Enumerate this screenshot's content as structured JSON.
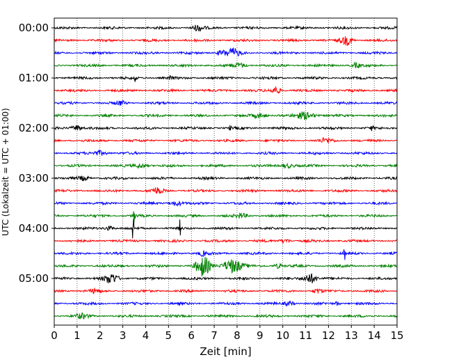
{
  "chart_data": {
    "type": "line",
    "xlabel": "Zeit  [min]",
    "ylabel": "UTC (Lokalzeit = UTC + 01:00)",
    "xlim": [
      0,
      15
    ],
    "x_ticks": [
      "0",
      "1",
      "2",
      "3",
      "4",
      "5",
      "6",
      "7",
      "8",
      "9",
      "10",
      "11",
      "12",
      "13",
      "14",
      "15"
    ],
    "y_ticks": [
      "00:00",
      "01:00",
      "02:00",
      "03:00",
      "04:00",
      "05:00"
    ],
    "grid": "vertical dotted",
    "trace_colors": [
      "#000000",
      "#ff0000",
      "#0000ff",
      "#008000"
    ],
    "traces": [
      {
        "start": "00:00",
        "color": "#000000",
        "events": [
          {
            "t": 6.3,
            "amp": 4,
            "w": 0.25
          }
        ]
      },
      {
        "start": "00:15",
        "color": "#ff0000",
        "events": [
          {
            "t": 12.8,
            "amp": 6,
            "w": 0.25
          }
        ]
      },
      {
        "start": "00:30",
        "color": "#0000ff",
        "events": [
          {
            "t": 7.8,
            "amp": 6,
            "w": 0.3
          },
          {
            "t": 7.3,
            "amp": 3,
            "w": 0.2
          }
        ]
      },
      {
        "start": "00:45",
        "color": "#008000",
        "events": [
          {
            "t": 8.1,
            "amp": 3,
            "w": 0.3
          },
          {
            "t": 13.2,
            "amp": 3,
            "w": 0.2
          }
        ]
      },
      {
        "start": "01:00",
        "color": "#000000",
        "events": [
          {
            "t": 3.55,
            "amp": 5,
            "w": 0.05
          },
          {
            "t": 5.1,
            "amp": 5,
            "w": 0.05
          }
        ]
      },
      {
        "start": "01:15",
        "color": "#ff0000",
        "events": [
          {
            "t": 9.7,
            "amp": 5,
            "w": 0.2
          }
        ]
      },
      {
        "start": "01:30",
        "color": "#0000ff",
        "events": [
          {
            "t": 2.9,
            "amp": 3,
            "w": 0.2
          }
        ]
      },
      {
        "start": "01:45",
        "color": "#008000",
        "events": [
          {
            "t": 9.0,
            "amp": 3,
            "w": 0.3
          },
          {
            "t": 11.0,
            "amp": 5,
            "w": 0.4
          }
        ]
      },
      {
        "start": "02:00",
        "color": "#000000",
        "events": [
          {
            "t": 1.0,
            "amp": 4,
            "w": 0.25
          },
          {
            "t": 7.7,
            "amp": 3,
            "w": 0.05
          },
          {
            "t": 13.9,
            "amp": 4,
            "w": 0.05
          }
        ]
      },
      {
        "start": "02:15",
        "color": "#ff0000",
        "events": [
          {
            "t": 11.9,
            "amp": 3,
            "w": 0.3
          }
        ]
      },
      {
        "start": "02:30",
        "color": "#0000ff",
        "events": [
          {
            "t": 2.0,
            "amp": 3,
            "w": 0.3
          }
        ]
      },
      {
        "start": "02:45",
        "color": "#008000",
        "events": [
          {
            "t": 3.8,
            "amp": 3,
            "w": 0.3
          },
          {
            "t": 10.2,
            "amp": 3,
            "w": 0.3
          }
        ]
      },
      {
        "start": "03:00",
        "color": "#000000",
        "events": [
          {
            "t": 1.3,
            "amp": 3,
            "w": 0.25
          }
        ]
      },
      {
        "start": "03:15",
        "color": "#ff0000",
        "events": [
          {
            "t": 4.5,
            "amp": 4,
            "w": 0.25
          }
        ]
      },
      {
        "start": "03:30",
        "color": "#0000ff",
        "events": [
          {
            "t": 5.3,
            "amp": 3,
            "w": 0.3
          }
        ]
      },
      {
        "start": "03:45",
        "color": "#008000",
        "events": [
          {
            "t": 3.5,
            "amp": 9,
            "w": 0.05
          },
          {
            "t": 8.2,
            "amp": 3,
            "w": 0.25
          }
        ]
      },
      {
        "start": "04:00",
        "color": "#000000",
        "events": [
          {
            "t": 3.45,
            "amp": 28,
            "w": 0.03
          },
          {
            "t": 5.5,
            "amp": 12,
            "w": 0.03
          },
          {
            "t": 2.4,
            "amp": 3,
            "w": 0.2
          }
        ]
      },
      {
        "start": "04:15",
        "color": "#ff0000",
        "events": [
          {
            "t": 10.1,
            "amp": 3,
            "w": 0.2
          }
        ]
      },
      {
        "start": "04:30",
        "color": "#0000ff",
        "events": [
          {
            "t": 12.7,
            "amp": 13,
            "w": 0.03
          },
          {
            "t": 6.5,
            "amp": 3,
            "w": 0.2
          }
        ]
      },
      {
        "start": "04:45",
        "color": "#008000",
        "events": [
          {
            "t": 6.5,
            "amp": 14,
            "w": 0.3
          },
          {
            "t": 7.8,
            "amp": 10,
            "w": 0.4
          },
          {
            "t": 9.8,
            "amp": 3,
            "w": 0.2
          }
        ]
      },
      {
        "start": "05:00",
        "color": "#000000",
        "events": [
          {
            "t": 2.5,
            "amp": 7,
            "w": 0.3
          },
          {
            "t": 11.2,
            "amp": 7,
            "w": 0.3
          }
        ]
      },
      {
        "start": "05:15",
        "color": "#ff0000",
        "events": [
          {
            "t": 11.5,
            "amp": 3,
            "w": 0.2
          },
          {
            "t": 1.8,
            "amp": 3,
            "w": 0.2
          }
        ]
      },
      {
        "start": "05:30",
        "color": "#0000ff",
        "events": [
          {
            "t": 10.3,
            "amp": 3,
            "w": 0.2
          },
          {
            "t": 12.4,
            "amp": 3,
            "w": 0.1
          }
        ]
      },
      {
        "start": "05:45",
        "color": "#008000",
        "events": [
          {
            "t": 1.2,
            "amp": 3,
            "w": 0.3
          }
        ]
      }
    ]
  }
}
